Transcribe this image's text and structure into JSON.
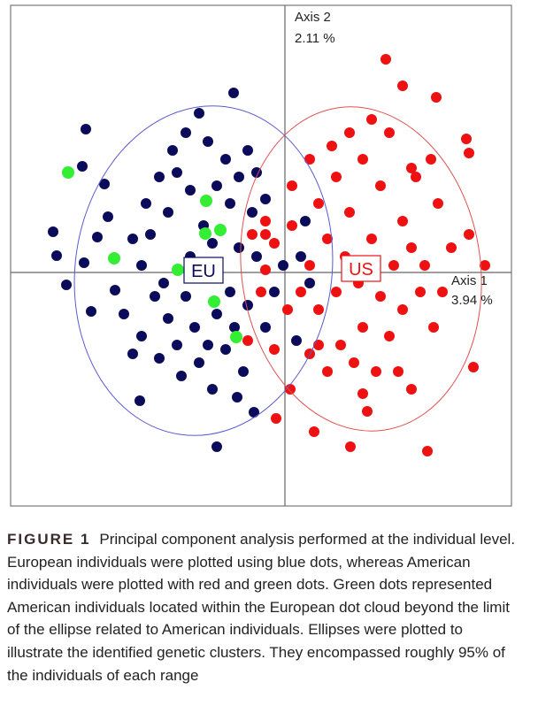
{
  "chart_data": {
    "type": "scatter",
    "x_axis": {
      "label": "Axis 1",
      "variance": "3.94 %"
    },
    "y_axis": {
      "label": "Axis 2",
      "variance": "2.11 %"
    },
    "xlim": [
      -3.1,
      2.56
    ],
    "ylim": [
      -2.64,
      3.02
    ],
    "series": [
      {
        "label": "EU",
        "color": "#0b0b5c",
        "ellipse": {
          "center": [
            -0.92,
            0.02
          ],
          "rx": 1.45,
          "ry": 1.87,
          "angle": 8,
          "color": "#5a5ad0"
        },
        "x": [
          -2.25,
          -0.58,
          -0.97,
          -2.29,
          -2.62,
          -2.58,
          -2.47,
          -2.19,
          -1.64,
          -0.77,
          -0.35,
          -0.54,
          -2.04,
          -2.0,
          -1.92,
          -1.72,
          -1.57,
          -1.42,
          -1.27,
          -1.12,
          -0.87,
          -0.67,
          -0.52,
          -0.32,
          -0.22,
          -0.37,
          -0.62,
          -1.07,
          -1.32,
          -1.52,
          -1.62,
          -1.47,
          -1.32,
          -1.62,
          -1.42,
          -1.17,
          -0.97,
          -0.82,
          -1.22,
          -1.02,
          -0.77,
          -0.62,
          -0.42,
          -0.22,
          -0.12,
          -0.02,
          0.18,
          0.28,
          -0.32,
          -0.52,
          -0.82,
          -1.07,
          -1.37,
          -1.82,
          -0.67,
          -0.47,
          -0.87,
          -1.12,
          -0.92,
          -1.22,
          -0.77,
          -0.42,
          0.23,
          0.13,
          -2.27,
          -2.12,
          -1.72,
          -0.57
        ],
        "values": [
          1.62,
          2.03,
          1.8,
          1.2,
          0.46,
          0.19,
          -0.14,
          -0.44,
          -1.45,
          -1.97,
          -1.58,
          -1.41,
          1.0,
          0.63,
          -0.2,
          0.38,
          0.78,
          1.08,
          1.38,
          1.58,
          1.48,
          1.28,
          1.08,
          1.13,
          0.83,
          0.68,
          0.78,
          0.93,
          0.68,
          0.43,
          0.08,
          -0.27,
          -0.52,
          -0.72,
          -0.97,
          -1.17,
          -1.02,
          -1.32,
          -0.82,
          -0.62,
          -0.47,
          -0.22,
          -0.37,
          -0.62,
          -0.22,
          0.08,
          0.18,
          -0.12,
          0.18,
          0.28,
          0.33,
          0.18,
          -0.12,
          -0.47,
          -0.87,
          -1.12,
          -0.82,
          -0.27,
          0.53,
          1.13,
          0.98,
          1.38,
          0.58,
          -0.77,
          0.11,
          0.4,
          -0.92,
          -0.62
        ]
      },
      {
        "label": "US",
        "color": "#ee1111",
        "ellipse": {
          "center": [
            0.86,
            0.04
          ],
          "rx": 1.35,
          "ry": 1.84,
          "angle": -8,
          "color": "#e05050"
        },
        "x": [
          1.14,
          1.33,
          1.71,
          2.05,
          2.08,
          1.65,
          2.08,
          2.26,
          2.13,
          1.61,
          0.74,
          0.33,
          -0.1,
          0.06,
          0.93,
          1.43,
          1.68,
          1.78,
          1.73,
          1.48,
          1.18,
          0.98,
          0.73,
          0.53,
          0.28,
          0.08,
          -0.22,
          -0.37,
          -0.12,
          0.08,
          0.38,
          0.58,
          0.88,
          1.08,
          1.33,
          1.43,
          1.23,
          0.98,
          0.73,
          0.48,
          0.28,
          0.18,
          0.38,
          0.58,
          0.83,
          1.08,
          1.33,
          1.53,
          1.18,
          0.88,
          0.63,
          0.78,
          1.03,
          0.48,
          0.28,
          -0.12,
          -0.27,
          -0.42,
          -0.22,
          0.38,
          1.28,
          1.58,
          1.88,
          0.88,
          -0.22,
          0.03,
          0.68,
          1.43
        ],
        "values": [
          2.41,
          2.11,
          1.98,
          1.51,
          1.35,
          1.28,
          0.43,
          0.08,
          -1.07,
          -2.02,
          -1.97,
          -1.8,
          -1.65,
          -1.32,
          -1.57,
          -1.32,
          -0.62,
          -0.22,
          0.78,
          1.08,
          1.58,
          1.73,
          1.58,
          1.43,
          1.28,
          0.98,
          0.58,
          0.43,
          0.33,
          0.53,
          0.78,
          1.08,
          1.28,
          0.98,
          0.58,
          0.28,
          0.08,
          0.38,
          0.68,
          0.38,
          0.08,
          -0.22,
          -0.42,
          -0.22,
          -0.12,
          -0.27,
          -0.42,
          -0.22,
          -0.72,
          -0.62,
          -0.82,
          -1.02,
          -1.12,
          -1.12,
          -0.92,
          -0.87,
          -0.22,
          -0.77,
          0.03,
          -0.82,
          -1.12,
          0.08,
          0.28,
          -1.37,
          0.43,
          -0.42,
          0.18,
          1.18
        ]
      },
      {
        "color": "#33ee33",
        "x": [
          -2.45,
          -0.89,
          -0.9,
          -0.73,
          -1.93,
          -1.21,
          -0.8,
          -0.55
        ],
        "values": [
          1.13,
          0.81,
          0.44,
          0.48,
          0.16,
          0.03,
          -0.33,
          -0.73
        ]
      }
    ]
  },
  "caption": {
    "label": "FIGURE 1",
    "text": "Principal component analysis performed at the individual level. European individuals were plotted using blue dots, whereas American individuals were plotted with red and green dots. Green dots represented American individuals located within the European dot cloud beyond the limit of the ellipse related to American individuals. Ellipses were plotted to illustrate the identified genetic clusters. They encompassed roughly 95% of the individuals of each range"
  }
}
